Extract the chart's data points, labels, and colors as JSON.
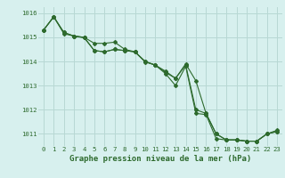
{
  "xlabel": "Graphe pression niveau de la mer (hPa)",
  "x": [
    0,
    1,
    2,
    3,
    4,
    5,
    6,
    7,
    8,
    9,
    10,
    11,
    12,
    13,
    14,
    15,
    16,
    17,
    18,
    19,
    20,
    21,
    22,
    23
  ],
  "series": [
    [
      1015.3,
      1015.85,
      1015.2,
      1015.05,
      1015.0,
      1014.75,
      1014.75,
      1014.8,
      1014.5,
      1014.4,
      1014.0,
      1013.85,
      1013.6,
      1013.3,
      1013.9,
      1013.2,
      1011.85,
      1011.0,
      1010.75,
      1010.75,
      1010.7,
      1010.7,
      1011.0,
      1011.1
    ],
    [
      1015.3,
      1015.85,
      1015.2,
      1015.05,
      1015.0,
      1014.45,
      1014.4,
      1014.5,
      1014.45,
      1014.4,
      1014.0,
      1013.85,
      1013.55,
      1013.3,
      1013.85,
      1012.0,
      1011.85,
      1011.0,
      1010.75,
      1010.75,
      1010.7,
      1010.7,
      1011.0,
      1011.1
    ],
    [
      1015.3,
      1015.85,
      1015.15,
      1015.05,
      1014.98,
      1014.45,
      1014.4,
      1014.5,
      1014.45,
      1014.4,
      1013.98,
      1013.85,
      1013.5,
      1013.0,
      1013.8,
      1011.85,
      1011.8,
      1010.8,
      1010.75,
      1010.75,
      1010.7,
      1010.7,
      1011.0,
      1011.15
    ]
  ],
  "line_color": "#2d6a2d",
  "marker_color": "#2d6a2d",
  "bg_color": "#d7f0ee",
  "grid_color": "#b8d8d4",
  "text_color": "#2d6a2d",
  "ylim": [
    1010.5,
    1016.25
  ],
  "yticks": [
    1011,
    1012,
    1013,
    1014,
    1015,
    1016
  ],
  "xticks": [
    0,
    1,
    2,
    3,
    4,
    5,
    6,
    7,
    8,
    9,
    10,
    11,
    12,
    13,
    14,
    15,
    16,
    17,
    18,
    19,
    20,
    21,
    22,
    23
  ],
  "xlabel_fontsize": 6.5,
  "tick_fontsize": 5.2
}
